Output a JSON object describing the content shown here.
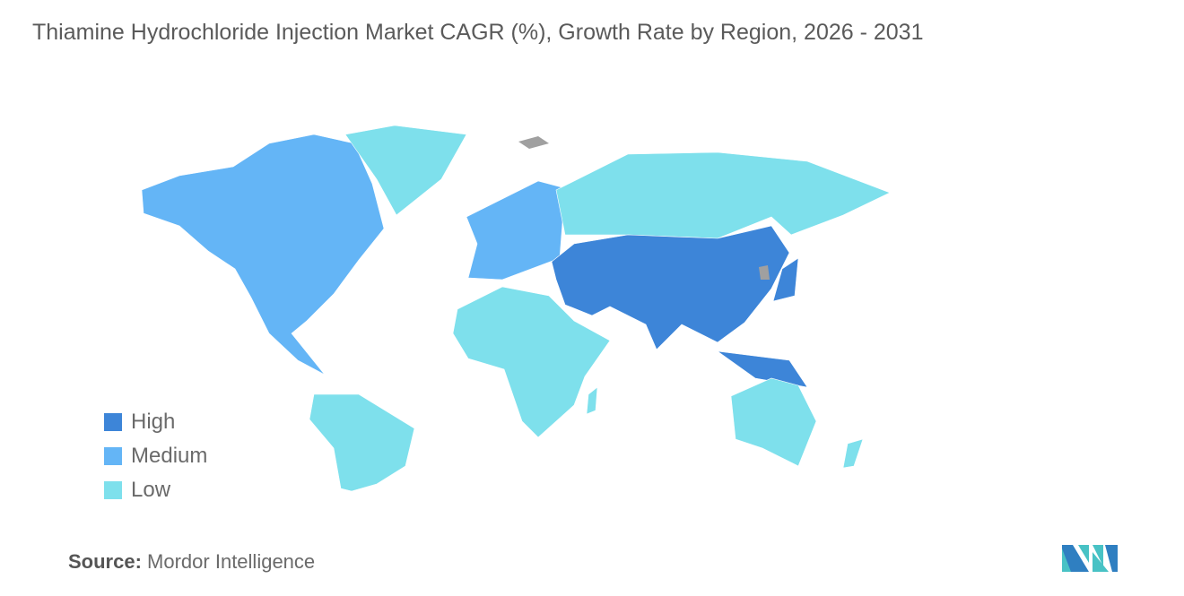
{
  "title": "Thiamine Hydrochloride Injection Market CAGR (%), Growth Rate by Region, 2026 - 2031",
  "legend": [
    {
      "label": "High",
      "color": "#3d85d8"
    },
    {
      "label": "Medium",
      "color": "#64b5f6"
    },
    {
      "label": "Low",
      "color": "#7ee0ec"
    }
  ],
  "no_data_color": "#a0a0a0",
  "regions": {
    "north_america": "Medium",
    "europe": "Medium",
    "asia_pacific": "High",
    "middle_east": "High",
    "south_america": "Low",
    "africa": "Low",
    "russia": "Low",
    "australia_nz": "Low",
    "greenland": "Low"
  },
  "source": {
    "label": "Source:",
    "value": "Mordor Intelligence"
  }
}
